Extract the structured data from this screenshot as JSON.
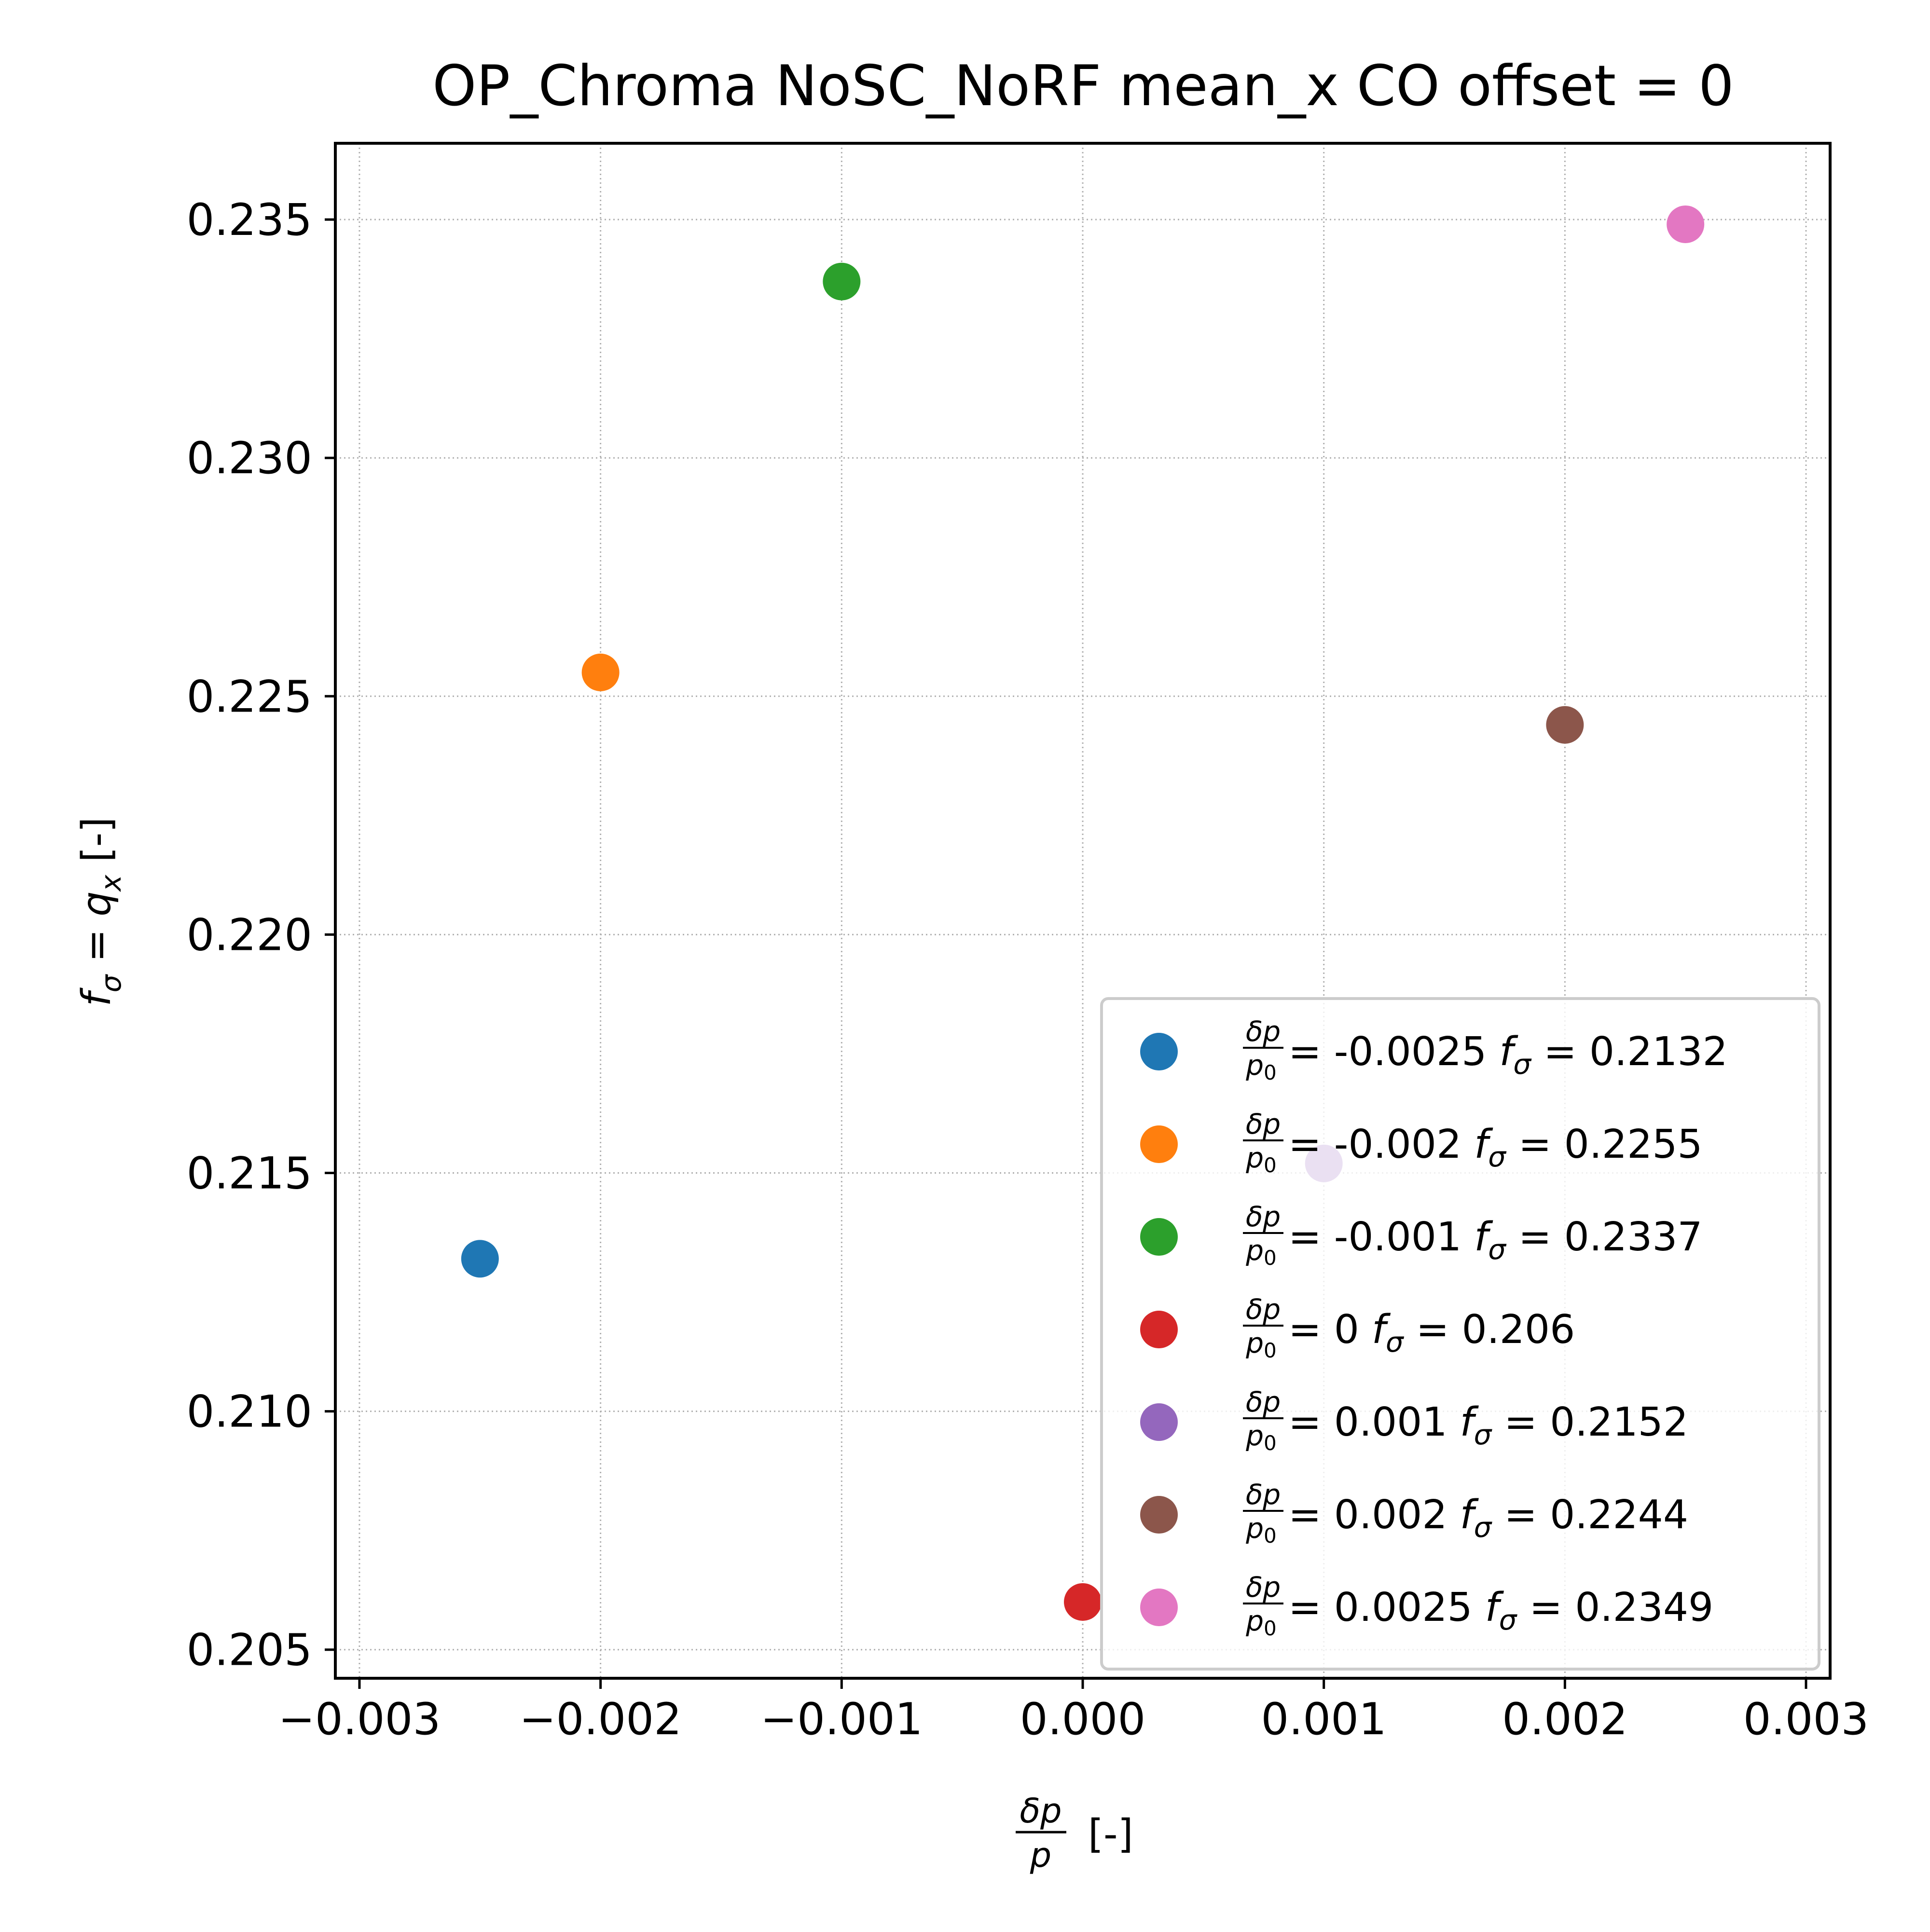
{
  "chart_data": {
    "type": "scatter",
    "title": "OP_Chroma NoSC_NoRF mean_x CO offset = 0",
    "xlabel": {
      "frac_num": "δp",
      "frac_den": "p",
      "suffix": "[-]"
    },
    "ylabel": {
      "f": "f",
      "sub": "σ",
      "eq": " = ",
      "q": "q",
      "qsub": "x",
      "suffix": " [-]"
    },
    "xlim": [
      -0.0031,
      0.0031
    ],
    "ylim": [
      0.2044,
      0.2366
    ],
    "x_ticks": [
      -0.003,
      -0.002,
      -0.001,
      0.0,
      0.001,
      0.002,
      0.003
    ],
    "x_tick_labels": [
      "−0.003",
      "−0.002",
      "−0.001",
      "0.000",
      "0.001",
      "0.002",
      "0.003"
    ],
    "y_ticks": [
      0.205,
      0.21,
      0.215,
      0.22,
      0.225,
      0.23,
      0.235
    ],
    "y_tick_labels": [
      "0.205",
      "0.210",
      "0.215",
      "0.220",
      "0.225",
      "0.230",
      "0.235"
    ],
    "grid": true,
    "legend_position": "lower right",
    "legend_label_parts": {
      "frac_num": "δp",
      "frac_den": "p",
      "frac_den_sub": "0",
      "equals": " = ",
      "f": "f",
      "f_sub": "σ",
      "f_equals": " =  "
    },
    "series": [
      {
        "x": -0.0025,
        "y": 0.2132,
        "color": "#1f77b4",
        "dp_label": "-0.0025",
        "f_label": "0.2132"
      },
      {
        "x": -0.002,
        "y": 0.2255,
        "color": "#ff7f0e",
        "dp_label": "-0.002",
        "f_label": "0.2255"
      },
      {
        "x": -0.001,
        "y": 0.2337,
        "color": "#2ca02c",
        "dp_label": "-0.001",
        "f_label": "0.2337"
      },
      {
        "x": 0.0,
        "y": 0.206,
        "color": "#d62728",
        "dp_label": "0",
        "f_label": "0.206"
      },
      {
        "x": 0.001,
        "y": 0.2152,
        "color": "#9467bd",
        "dp_label": "0.001",
        "f_label": "0.2152"
      },
      {
        "x": 0.002,
        "y": 0.2244,
        "color": "#8c564b",
        "dp_label": "0.002",
        "f_label": "0.2244"
      },
      {
        "x": 0.0025,
        "y": 0.2349,
        "color": "#e377c2",
        "dp_label": "0.0025",
        "f_label": "0.2349"
      }
    ]
  }
}
